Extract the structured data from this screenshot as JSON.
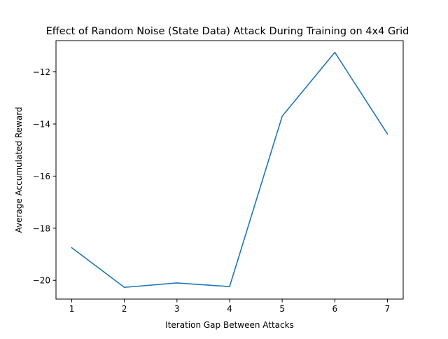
{
  "chart_data": {
    "type": "line",
    "title": "Effect of Random Noise (State Data) Attack During Training on 4x4 Grid",
    "xlabel": "Iteration Gap Between Attacks",
    "ylabel": "Average Accumulated Reward",
    "x": [
      1,
      2,
      3,
      4,
      5,
      6,
      7
    ],
    "series": [
      {
        "values": [
          -18.75,
          -20.27,
          -20.1,
          -20.24,
          -13.7,
          -11.25,
          -14.38
        ]
      }
    ],
    "xticks": [
      1,
      2,
      3,
      4,
      5,
      6,
      7
    ],
    "yticks": [
      -20,
      -18,
      -16,
      -14,
      -12
    ],
    "xlim": [
      0.7,
      7.3
    ],
    "ylim": [
      -20.72,
      -10.8
    ],
    "grid": false,
    "legend": "none",
    "line_color": "#1f77b4"
  }
}
